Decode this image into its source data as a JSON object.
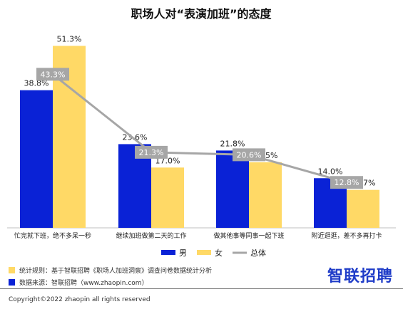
{
  "chart_data": {
    "type": "bar",
    "title": "职场人对“表演加班”的态度",
    "categories": [
      "忙完就下班，绝不多呆一秒",
      "继续加班做第二天的工作",
      "做其他事等同事一起下班",
      "附近逛逛，差不多再打卡"
    ],
    "series": [
      {
        "name": "男",
        "color": "#0a22d6",
        "values": [
          38.8,
          23.6,
          21.8,
          14.0
        ],
        "labels": [
          "38.8%",
          "23.6%",
          "21.8%",
          "14.0%"
        ]
      },
      {
        "name": "女",
        "color": "#ffd966",
        "values": [
          51.3,
          17.0,
          18.5,
          10.7
        ],
        "labels": [
          "51.3%",
          "17.0%",
          "18.5%",
          "10.7%"
        ]
      }
    ],
    "line": {
      "name": "总体",
      "color": "#a6a6a6",
      "values": [
        43.3,
        21.3,
        20.6,
        12.8
      ],
      "labels": [
        "43.3%",
        "21.3%",
        "20.6%",
        "12.8%"
      ]
    },
    "ylim": [
      0,
      55
    ],
    "xlabel": "",
    "ylabel": "",
    "legend_position": "bottom",
    "grid": false
  },
  "notes": {
    "rule": "统计规则：基于智联招聘《职场人加班洞察》调查问卷数据统计分析",
    "source": "数据来源：智联招聘（www.zhaopin.com）"
  },
  "brand": "智联招聘",
  "copyright": "Copyright©2022 zhaopin all rights reserved"
}
